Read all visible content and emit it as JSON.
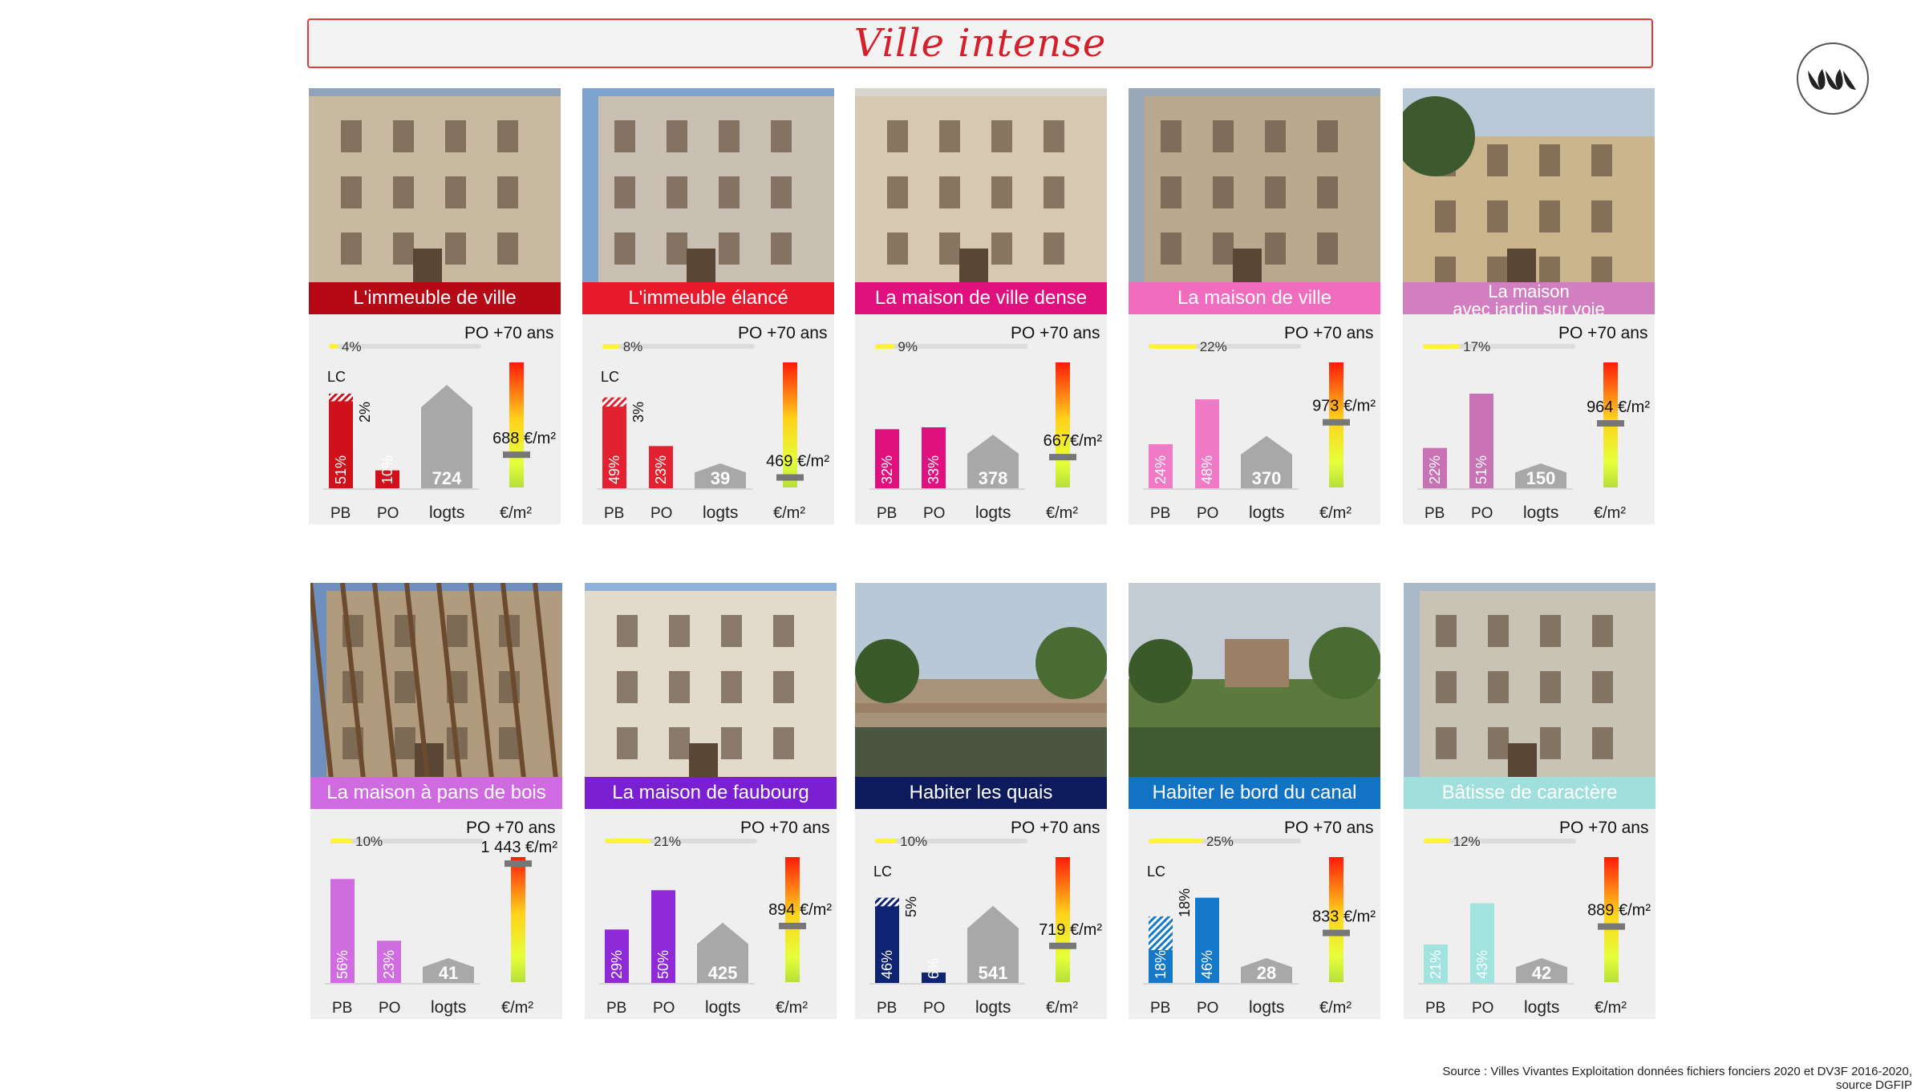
{
  "title": "Ville intense",
  "logo_icon": "leaf-logo-icon",
  "source_line1": "Source : Villes Vivantes  Exploitation données fichiers fonciers 2020 et DV3F 2016-2020,",
  "source_line2": "source DGFIP",
  "cards": [
    {
      "name": "L'immeuble de ville",
      "band": "#b50a16",
      "bar": "#d0101b",
      "po70_pct": 4,
      "po70": "4%",
      "lc": "LC",
      "lc_share": "2%",
      "pb": "51%",
      "pb_val": 51,
      "pb_lc": 0.08,
      "po": "10%",
      "po_val": 10,
      "logts": "724",
      "logts_val": 724,
      "price": "688 €/m²",
      "price_val": 688,
      "sky": "#8fa4ba",
      "wall": "#c8b9a1"
    },
    {
      "name": "L'immeuble élancé",
      "band": "#e8192b",
      "bar": "#e32231",
      "po70_pct": 8,
      "po70": "8%",
      "lc": "LC",
      "lc_share": "3%",
      "pb": "49%",
      "pb_val": 49,
      "pb_lc": 0.1,
      "po": "23%",
      "po_val": 23,
      "logts": "39",
      "logts_val": 39,
      "price": "469 €/m²",
      "price_val": 469,
      "sky": "#7ea3cf",
      "wall": "#c9c0b3"
    },
    {
      "name": "La maison de ville dense",
      "band": "#e0117f",
      "bar": "#e0117f",
      "po70_pct": 9,
      "po70": "9%",
      "lc": "",
      "lc_share": "",
      "pb": "32%",
      "pb_val": 32,
      "pb_lc": 0,
      "po": "33%",
      "po_val": 33,
      "logts": "378",
      "logts_val": 378,
      "price": "667€/m²",
      "price_val": 667,
      "sky": "#d8d4ce",
      "wall": "#d6c8b1"
    },
    {
      "name": "La maison de ville",
      "band": "#f06cbf",
      "bar": "#f07ac6",
      "po70_pct": 22,
      "po70": "22%",
      "lc": "",
      "lc_share": "",
      "pb": "24%",
      "pb_val": 24,
      "pb_lc": 0,
      "po": "48%",
      "po_val": 48,
      "logts": "370",
      "logts_val": 370,
      "price": "973 €/m²",
      "price_val": 973,
      "sky": "#9aa9b7",
      "wall": "#b8a98f"
    },
    {
      "name": "La maison\navec jardin sur voie",
      "band": "#d27fc1",
      "bar": "#c971b5",
      "po70_pct": 17,
      "po70": "17%",
      "lc": "",
      "lc_share": "",
      "pb": "22%",
      "pb_val": 22,
      "pb_lc": 0,
      "po": "51%",
      "po_val": 51,
      "logts": "150",
      "logts_val": 150,
      "price": "964 €/m²",
      "price_val": 964,
      "sky": "#b9c9d8",
      "wall": "#cbb58c"
    },
    {
      "name": "La maison à pans de bois",
      "band": "#d06ae0",
      "bar": "#cf6de0",
      "po70_pct": 10,
      "po70": "10%",
      "lc": "",
      "lc_share": "",
      "pb": "56%",
      "pb_val": 56,
      "pb_lc": 0,
      "po": "23%",
      "po_val": 23,
      "logts": "41",
      "logts_val": 41,
      "price": "1 443 €/m²",
      "price_val": 1443,
      "sky": "#6f8fbf",
      "wall": "#b19b7e"
    },
    {
      "name": "La maison de faubourg",
      "band": "#7a1fd2",
      "bar": "#8e2ad8",
      "po70_pct": 21,
      "po70": "21%",
      "lc": "",
      "lc_share": "",
      "pb": "29%",
      "pb_val": 29,
      "pb_lc": 0,
      "po": "50%",
      "po_val": 50,
      "logts": "425",
      "logts_val": 425,
      "price": "894 €/m²",
      "price_val": 894,
      "sky": "#8eb2dc",
      "wall": "#e2dacb"
    },
    {
      "name": "Habiter les quais",
      "band": "#0d1a5c",
      "bar": "#0f2373",
      "po70_pct": 10,
      "po70": "10%",
      "lc": "LC",
      "lc_share": "5%",
      "pb": "46%",
      "pb_val": 46,
      "pb_lc": 0.1,
      "po": "6%",
      "po_val": 6,
      "logts": "541",
      "logts_val": 541,
      "price": "719 €/m²",
      "price_val": 719,
      "sky": "#b9c8d6",
      "wall": "#a7937a"
    },
    {
      "name": "Habiter le bord du canal",
      "band": "#1272c4",
      "bar": "#1678c8",
      "po70_pct": 25,
      "po70": "25%",
      "lc": "LC",
      "lc_share": "18%",
      "pb": "18%",
      "pb_val": 36,
      "pb_lc": 0.5,
      "po": "46%",
      "po_val": 46,
      "logts": "28",
      "logts_val": 28,
      "price": "833 €/m²",
      "price_val": 833,
      "sky": "#c3ccd4",
      "wall": "#5d7a3e"
    },
    {
      "name": "Bâtisse de caractère",
      "band": "#9fe0dc",
      "bar": "#a0e3df",
      "po70_pct": 12,
      "po70": "12%",
      "lc": "",
      "lc_share": "",
      "pb": "21%",
      "pb_val": 21,
      "pb_lc": 0,
      "po": "43%",
      "po_val": 43,
      "logts": "42",
      "logts_val": 42,
      "price": "889 €/m²",
      "price_val": 889,
      "sky": "#a9b8c9",
      "wall": "#c9c3b6"
    }
  ],
  "labels": {
    "po70": "PO +70 ans",
    "pb": "PB",
    "po": "PO",
    "logts": "logts",
    "eur": "€/m²"
  }
}
